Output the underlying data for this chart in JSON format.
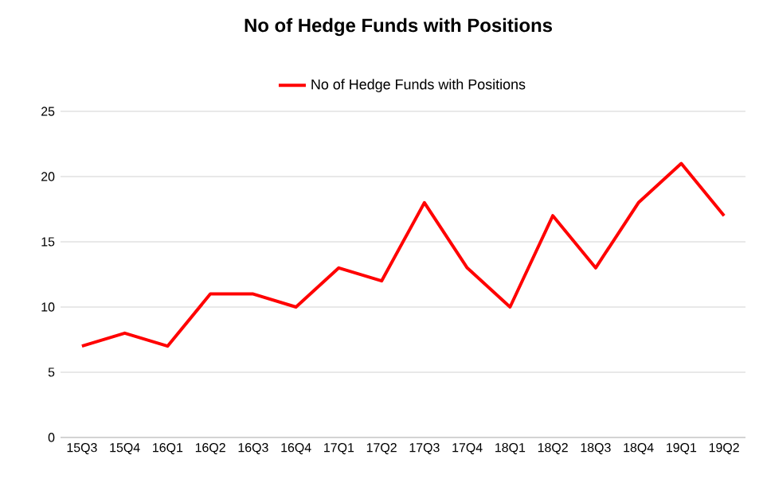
{
  "chart_data": {
    "type": "line",
    "title": "No of Hedge Funds with Positions",
    "categories": [
      "15Q3",
      "15Q4",
      "16Q1",
      "16Q2",
      "16Q3",
      "16Q4",
      "17Q1",
      "17Q2",
      "17Q3",
      "17Q4",
      "18Q1",
      "18Q2",
      "18Q3",
      "18Q4",
      "19Q1",
      "19Q2"
    ],
    "series": [
      {
        "name": "No of Hedge Funds with Positions",
        "color": "#ff0000",
        "values": [
          7,
          8,
          7,
          11,
          11,
          10,
          13,
          12,
          18,
          13,
          10,
          17,
          13,
          18,
          21,
          17
        ]
      }
    ],
    "ylim": [
      0,
      25
    ],
    "yticks": [
      0,
      5,
      10,
      15,
      20,
      25
    ],
    "grid": "y",
    "legend": "top"
  }
}
